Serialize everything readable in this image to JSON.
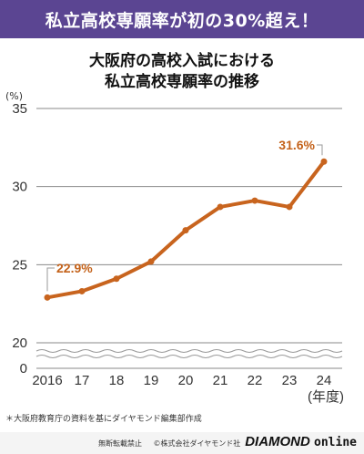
{
  "banner": "私立高校専願率が初の30%超え！",
  "title_line1": "大阪府の高校入試における",
  "title_line2": "私立高校専願率の推移",
  "note": "＊大阪府教育庁の資料を基にダイヤモンド編集部作成",
  "footer": {
    "no_reprint": "無断転載禁止",
    "copyright": "©株式会社ダイヤモンド社",
    "logo_main": "DIAMOND",
    "logo_sub": "online"
  },
  "chart_data": {
    "type": "line",
    "title": "大阪府の高校入試における私立高校専願率の推移",
    "ylabel": "(%)",
    "xlabel_suffix": "(年度)",
    "ylim": [
      20,
      35
    ],
    "y_ticks": [
      "35",
      "30",
      "25",
      "20",
      "0"
    ],
    "axis_break": true,
    "grid": "horizontal",
    "color": "#c8641e",
    "categories": [
      "2016",
      "17",
      "18",
      "19",
      "20",
      "21",
      "22",
      "23",
      "24"
    ],
    "values": [
      22.9,
      23.3,
      24.1,
      25.2,
      27.2,
      28.7,
      29.1,
      28.7,
      31.6
    ],
    "annotations": [
      {
        "label": "22.9%",
        "index": 0
      },
      {
        "label": "31.6%",
        "index": 8
      }
    ]
  }
}
